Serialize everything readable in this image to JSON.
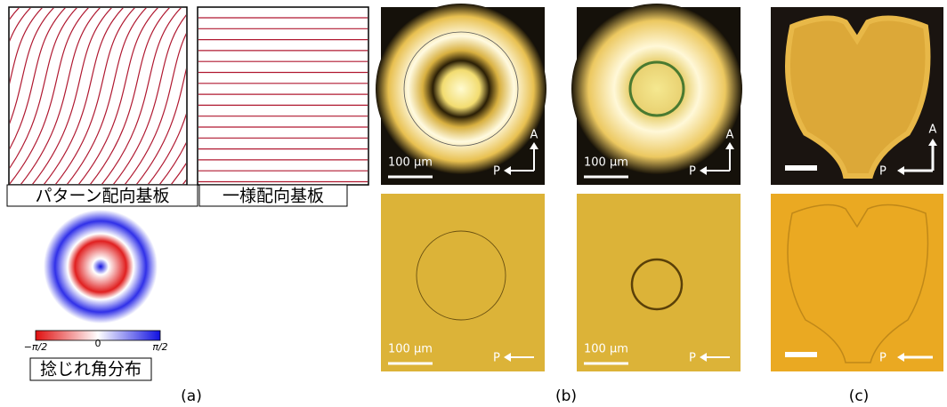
{
  "panel_a": {
    "pattern_label": "パターン配向基板",
    "uniform_label": "一様配向基板",
    "colorbar": {
      "min_label": "−π/2",
      "mid_label": "0",
      "max_label": "π/2"
    },
    "caption_label": "捻じれ角分布",
    "tag": "(a)"
  },
  "panel_b": {
    "tag": "(b)",
    "images": [
      {
        "scale_bar": "100 µm",
        "analyzer": "A",
        "polarizer": "P"
      },
      {
        "scale_bar": "100 µm",
        "analyzer": "A",
        "polarizer": "P"
      },
      {
        "scale_bar": "100 µm",
        "polarizer": "P"
      },
      {
        "scale_bar": "100 µm",
        "polarizer": "P"
      }
    ]
  },
  "panel_c": {
    "tag": "(c)",
    "images": [
      {
        "analyzer": "A",
        "polarizer": "P"
      },
      {
        "polarizer": "P"
      }
    ]
  }
}
